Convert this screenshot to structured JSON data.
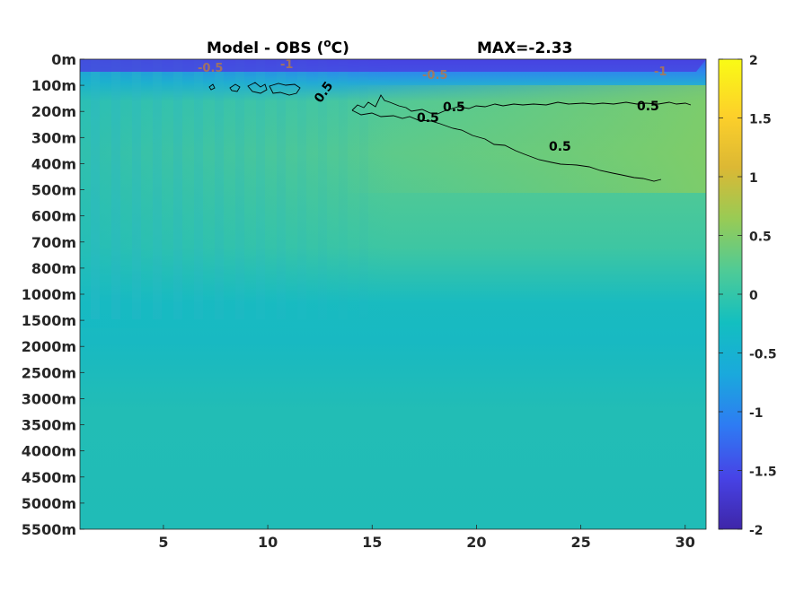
{
  "figure": {
    "title_left": "Model - OBS (",
    "title_degree": "o",
    "title_unit": "C)",
    "title_right": "MAX=-2.33"
  },
  "chart_data": {
    "type": "heatmap",
    "title": "Model - OBS (°C)",
    "subtitle": "MAX=-2.33",
    "x": {
      "range": [
        1,
        31
      ],
      "ticks": [
        5,
        10,
        15,
        20,
        25,
        30
      ]
    },
    "y_depth_labels": [
      "0m",
      "100m",
      "200m",
      "300m",
      "400m",
      "500m",
      "600m",
      "700m",
      "800m",
      "1000m",
      "1500m",
      "2000m",
      "2500m",
      "3000m",
      "3500m",
      "4000m",
      "4500m",
      "5000m",
      "5500m"
    ],
    "colorbar": {
      "range": [
        -2,
        2
      ],
      "ticks": [
        "2",
        "1.5",
        "1",
        "0.5",
        "0",
        "-0.5",
        "-1",
        "-1.5",
        "-2"
      ]
    },
    "colormap": [
      "#3e26a8",
      "#4743e6",
      "#2e7bf3",
      "#1aa9dc",
      "#13bfc0",
      "#4fcb96",
      "#98cb55",
      "#dcb834",
      "#fdd02a",
      "#f9fb15"
    ],
    "contours": [
      {
        "level": "0.5",
        "description": "positive anomaly band near 100m-400m from x=14 to x=31"
      },
      {
        "level": "-0.5",
        "description": "near surface"
      },
      {
        "level": "-1",
        "description": "near surface"
      }
    ],
    "contour_labels": [
      "0.5",
      "0.5",
      "0.5",
      "0.5",
      "0.5",
      "-0.5",
      "-0.5",
      "-1",
      "-1"
    ]
  }
}
